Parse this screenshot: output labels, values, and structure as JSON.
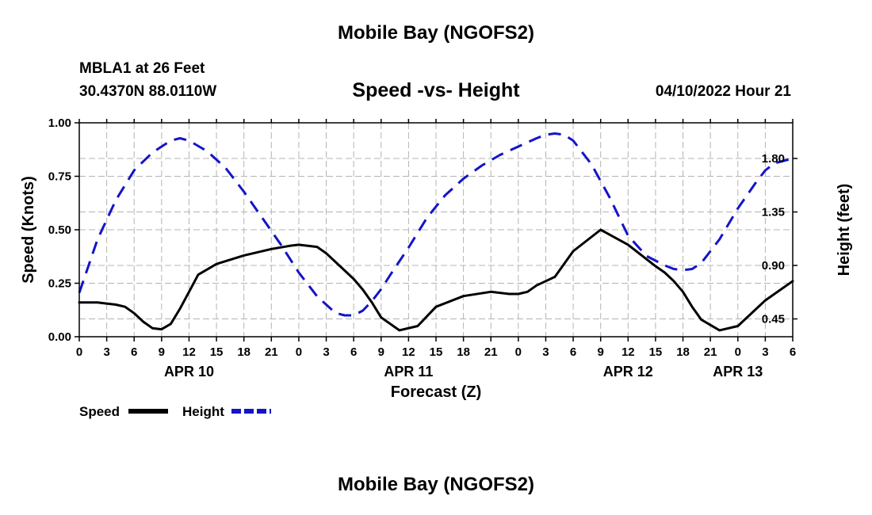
{
  "header": {
    "title": "Mobile Bay (NGOFS2)",
    "station": "MBLA1 at 26 Feet",
    "coordinates": "30.4370N  88.0110W",
    "subtitle": "Speed -vs- Height",
    "datetime": "04/10/2022 Hour 21"
  },
  "footer": {
    "title": "Mobile Bay (NGOFS2)"
  },
  "colors": {
    "speed": "#000000",
    "height": "#1414c8",
    "grid": "#b4b4b4"
  },
  "chart_data": {
    "type": "line",
    "xlabel": "Forecast (Z)",
    "x_range": [
      0,
      78
    ],
    "x_tick_labels": [
      "0",
      "3",
      "6",
      "9",
      "12",
      "15",
      "18",
      "21",
      "0",
      "3",
      "6",
      "9",
      "12",
      "15",
      "18",
      "21",
      "0",
      "3",
      "6",
      "9",
      "12",
      "15",
      "18",
      "21",
      "0",
      "3",
      "6"
    ],
    "date_labels": [
      {
        "label": "APR 10",
        "x": 12
      },
      {
        "label": "APR 11",
        "x": 36
      },
      {
        "label": "APR 12",
        "x": 60
      },
      {
        "label": "APR 13",
        "x": 72
      }
    ],
    "y_left": {
      "label": "Speed (Knots)",
      "range": [
        0,
        1
      ],
      "ticks": [
        0.0,
        0.25,
        0.5,
        0.75,
        1.0
      ],
      "tick_labels": [
        "0.00",
        "0.25",
        "0.50",
        "0.75",
        "1.00"
      ]
    },
    "y_right": {
      "label": "Height (feet)",
      "range": [
        0.3,
        2.1
      ],
      "ticks": [
        0.45,
        0.9,
        1.35,
        1.8
      ],
      "tick_labels": [
        "0.45",
        "0.90",
        "1.35",
        "1.80"
      ]
    },
    "grid": true,
    "legend": [
      "Speed",
      "Height"
    ],
    "series": [
      {
        "name": "Speed",
        "axis": "left",
        "style": "solid",
        "x": [
          0,
          2,
          4,
          5,
          6,
          7,
          8,
          9,
          10,
          11,
          12,
          13,
          15,
          18,
          21,
          23,
          24,
          25,
          26,
          27,
          28,
          30,
          31,
          32,
          33,
          35,
          37,
          39,
          42,
          45,
          47,
          48,
          49,
          50,
          51,
          52,
          54,
          57,
          60,
          63,
          64,
          65,
          66,
          67,
          68,
          70,
          72,
          75,
          78
        ],
        "values": [
          0.16,
          0.16,
          0.15,
          0.14,
          0.11,
          0.07,
          0.04,
          0.035,
          0.06,
          0.13,
          0.21,
          0.29,
          0.34,
          0.38,
          0.41,
          0.425,
          0.43,
          0.425,
          0.42,
          0.39,
          0.35,
          0.27,
          0.22,
          0.16,
          0.09,
          0.03,
          0.05,
          0.14,
          0.19,
          0.21,
          0.2,
          0.2,
          0.21,
          0.24,
          0.26,
          0.28,
          0.4,
          0.5,
          0.43,
          0.33,
          0.3,
          0.26,
          0.21,
          0.14,
          0.08,
          0.03,
          0.05,
          0.17,
          0.26
        ]
      },
      {
        "name": "Height",
        "axis": "right",
        "style": "dashed",
        "x": [
          0,
          2,
          4,
          6,
          8,
          10,
          11,
          12,
          14,
          16,
          18,
          20,
          22,
          24,
          26,
          28,
          29,
          30,
          31,
          32,
          33,
          34,
          36,
          38,
          40,
          42,
          44,
          46,
          48,
          50,
          51,
          52,
          53,
          54,
          56,
          58,
          60,
          62,
          64,
          65,
          66,
          67,
          68,
          70,
          72,
          74,
          75,
          76,
          78
        ],
        "values": [
          0.67,
          1.12,
          1.45,
          1.7,
          1.85,
          1.95,
          1.97,
          1.95,
          1.86,
          1.72,
          1.52,
          1.3,
          1.08,
          0.84,
          0.64,
          0.5,
          0.48,
          0.48,
          0.52,
          0.6,
          0.7,
          0.82,
          1.05,
          1.3,
          1.49,
          1.63,
          1.74,
          1.83,
          1.9,
          1.97,
          2.0,
          2.01,
          2.0,
          1.95,
          1.75,
          1.47,
          1.15,
          0.98,
          0.9,
          0.87,
          0.86,
          0.87,
          0.92,
          1.12,
          1.38,
          1.6,
          1.7,
          1.76,
          1.8
        ]
      }
    ]
  }
}
